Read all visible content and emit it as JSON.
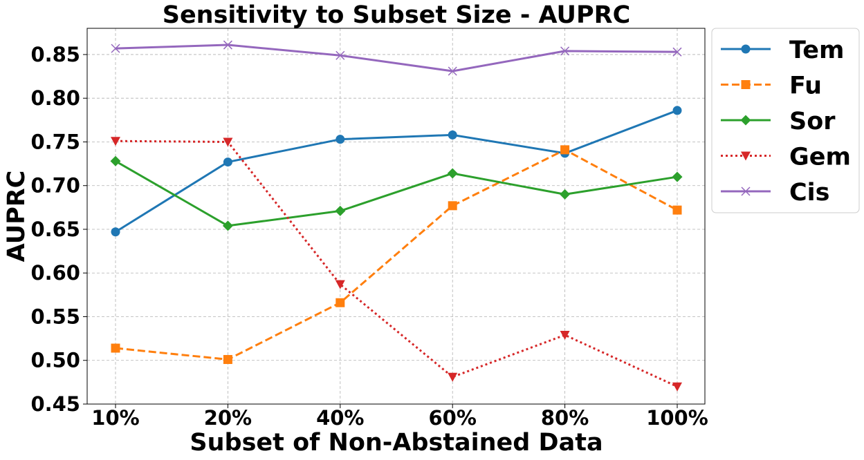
{
  "chart_data": {
    "type": "line",
    "title": "Sensitivity to Subset Size - AUPRC",
    "xlabel": "Subset of Non-Abstained Data",
    "ylabel": "AUPRC",
    "categories": [
      "10%",
      "20%",
      "40%",
      "60%",
      "80%",
      "100%"
    ],
    "ylim": [
      0.45,
      0.88
    ],
    "yticks": [
      0.45,
      0.5,
      0.55,
      0.6,
      0.65,
      0.7,
      0.75,
      0.8,
      0.85
    ],
    "ytick_labels": [
      "0.45",
      "0.50",
      "0.55",
      "0.60",
      "0.65",
      "0.70",
      "0.75",
      "0.80",
      "0.85"
    ],
    "grid": true,
    "legend_position": "outside-right-top",
    "series": [
      {
        "name": "Tem",
        "color": "#1f77b4",
        "marker": "circle",
        "linestyle": "solid",
        "values": [
          0.647,
          0.727,
          0.753,
          0.758,
          0.737,
          0.786
        ]
      },
      {
        "name": "Fu",
        "color": "#ff7f0e",
        "marker": "square",
        "linestyle": "dashed",
        "values": [
          0.514,
          0.501,
          0.566,
          0.677,
          0.741,
          0.672
        ]
      },
      {
        "name": "Sor",
        "color": "#2ca02c",
        "marker": "diamond",
        "linestyle": "solid",
        "values": [
          0.728,
          0.654,
          0.671,
          0.714,
          0.69,
          0.71
        ]
      },
      {
        "name": "Gem",
        "color": "#d62728",
        "marker": "triangle-down",
        "linestyle": "dotted",
        "values": [
          0.751,
          0.75,
          0.587,
          0.481,
          0.529,
          0.47
        ]
      },
      {
        "name": "Cis",
        "color": "#9467bd",
        "marker": "x",
        "linestyle": "solid",
        "values": [
          0.857,
          0.861,
          0.849,
          0.831,
          0.854,
          0.853
        ]
      }
    ]
  }
}
